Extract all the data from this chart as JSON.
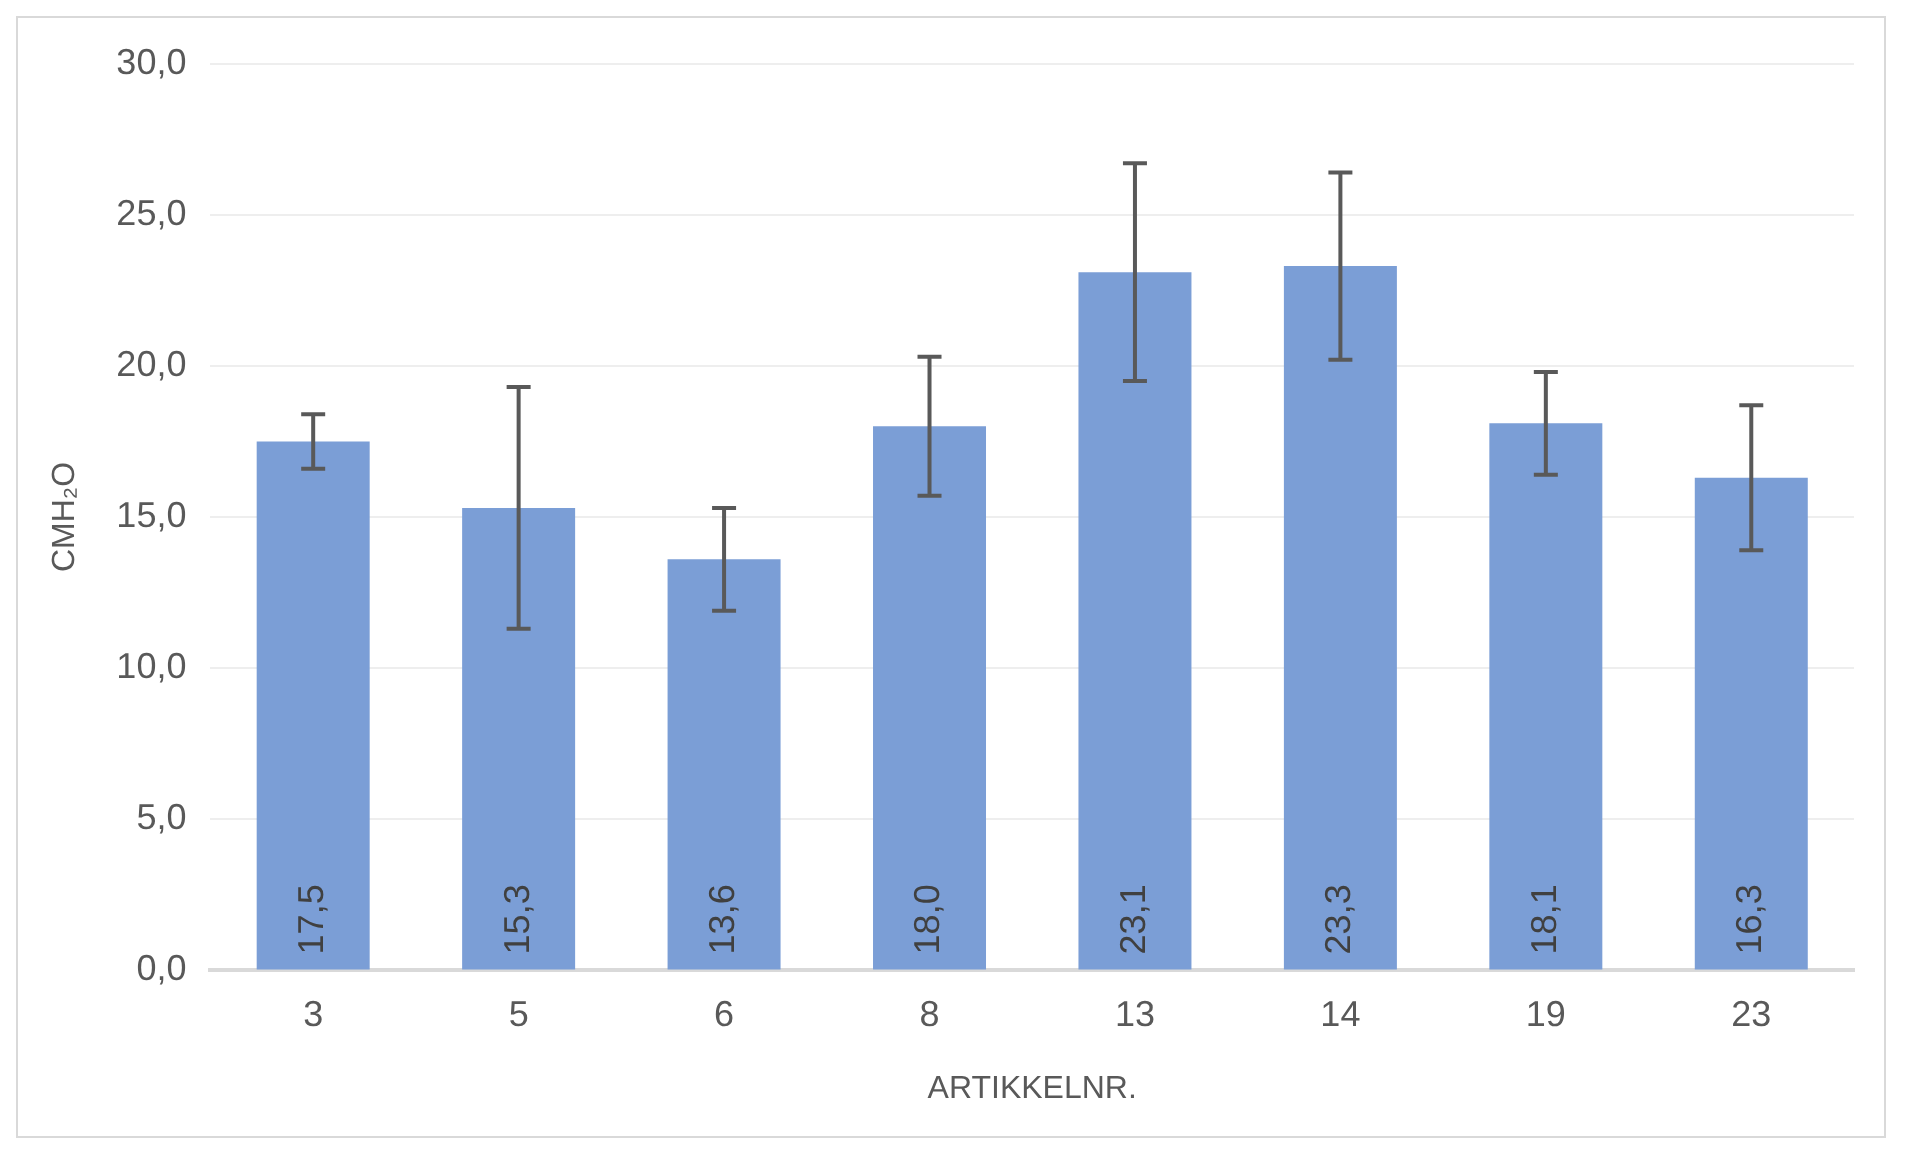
{
  "chart_data": {
    "type": "bar",
    "xlabel": "ARTIKKELNR.",
    "ylabel": "CMH₂O",
    "categories": [
      "3",
      "5",
      "6",
      "8",
      "13",
      "14",
      "19",
      "23"
    ],
    "values": [
      17.5,
      15.3,
      13.6,
      18.0,
      23.1,
      23.3,
      18.1,
      16.3
    ],
    "errors": [
      0.9,
      4.0,
      1.7,
      2.3,
      3.6,
      3.1,
      1.7,
      2.4
    ],
    "value_labels": [
      "17,5",
      "15,3",
      "13,6",
      "18,0",
      "23,1",
      "23,3",
      "18,1",
      "16,3"
    ],
    "color": "#7b9ed6",
    "ylim": [
      0,
      30
    ],
    "yticks": [
      {
        "value": 0,
        "label": "0,0"
      },
      {
        "value": 5,
        "label": "5,0"
      },
      {
        "value": 10,
        "label": "10,0"
      },
      {
        "value": 15,
        "label": "15,0"
      },
      {
        "value": 20,
        "label": "20,0"
      },
      {
        "value": 25,
        "label": "25,0"
      },
      {
        "value": 30,
        "label": "30,0"
      }
    ],
    "grid": "y"
  }
}
